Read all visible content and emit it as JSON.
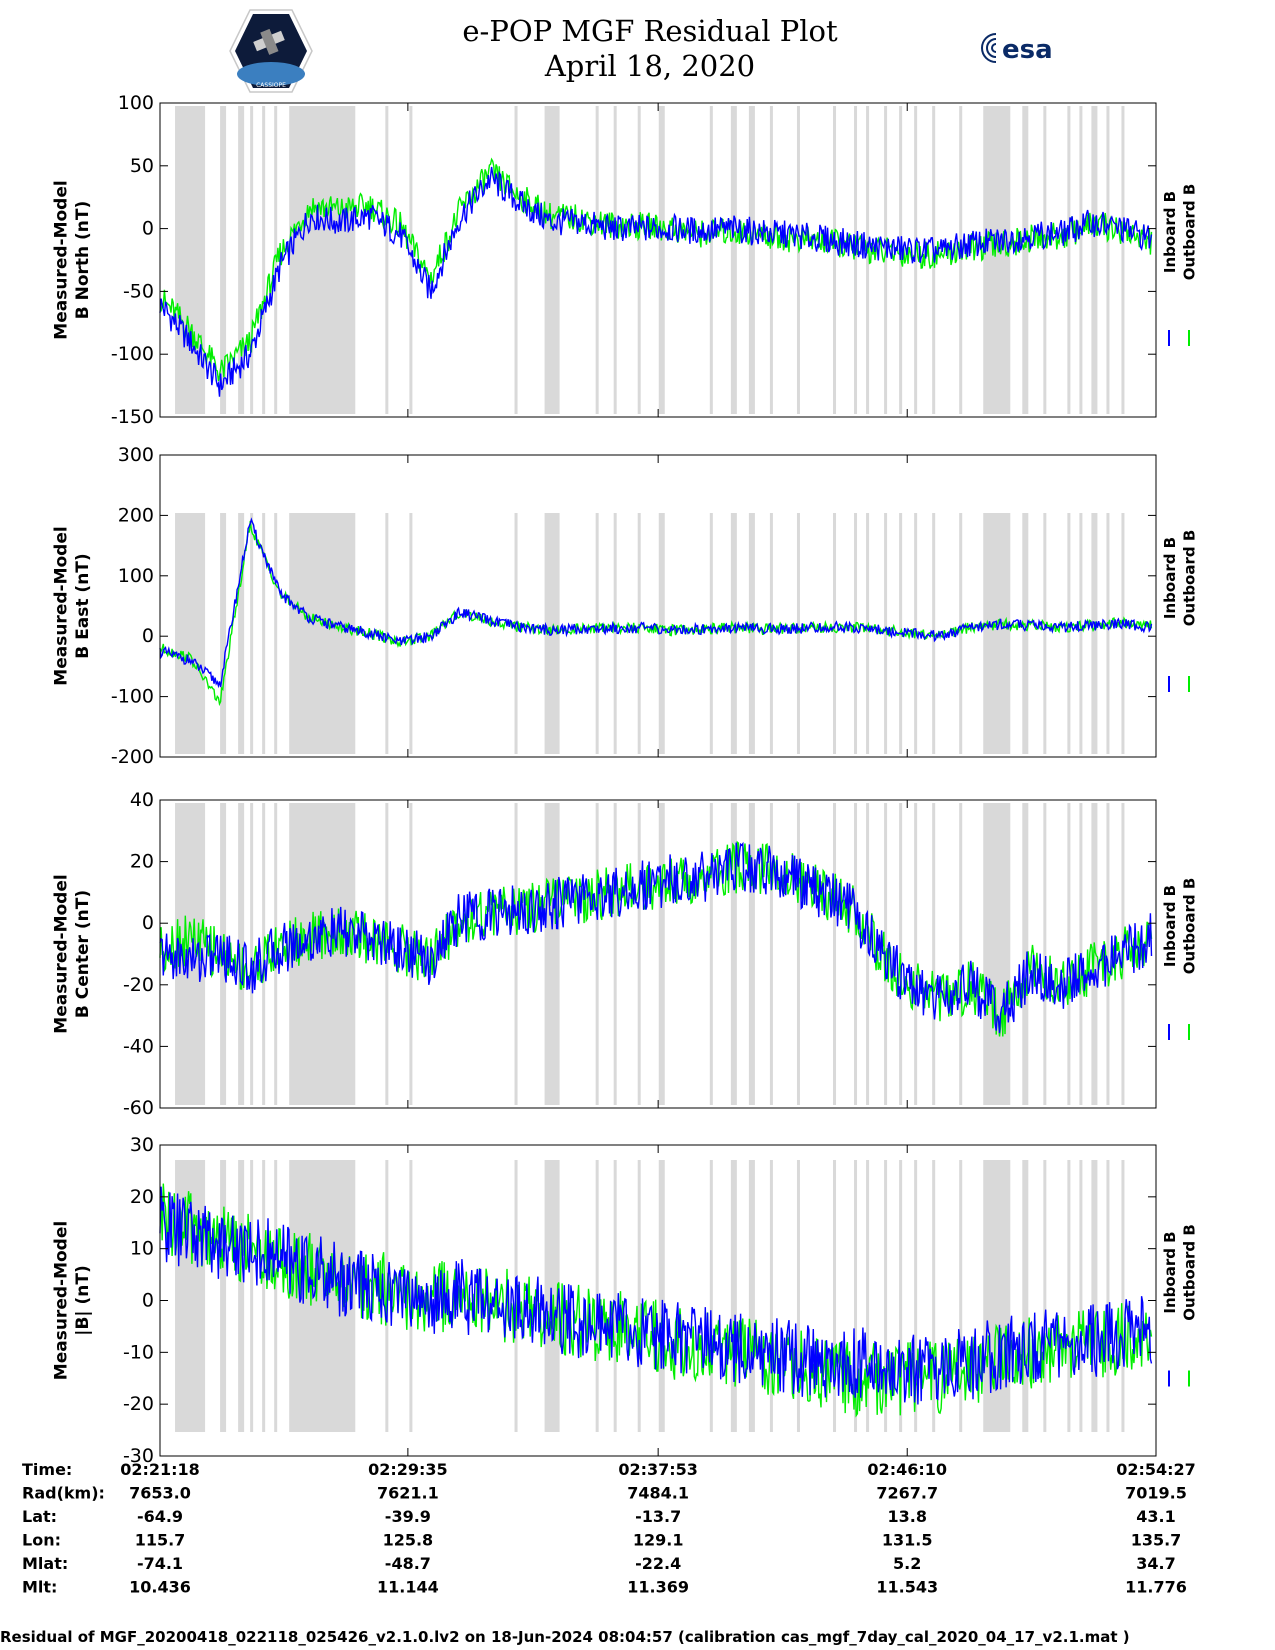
{
  "header": {
    "title_line1": "e-POP MGF Residual Plot",
    "title_line2": "April 18, 2020",
    "logo_left_text": "CASSIOPE",
    "logo_right_text": "esa"
  },
  "colors": {
    "inboard": "#0000ff",
    "outboard": "#00ee00",
    "shading": "#d9d9d9"
  },
  "chart_data": [
    {
      "type": "line",
      "ylabel": [
        "Measured-Model",
        "B North (nT)"
      ],
      "ylim": [
        -150,
        100
      ],
      "yticks": [
        100,
        50,
        0,
        -50,
        -100,
        -150
      ],
      "x": [
        0,
        1,
        2,
        3,
        4,
        5,
        6,
        7,
        8,
        9,
        10,
        11,
        12,
        13,
        14,
        15,
        16,
        17,
        18,
        19,
        20,
        21,
        22,
        23,
        24,
        25,
        26,
        27,
        28,
        29,
        30,
        31,
        32,
        33
      ],
      "series": [
        {
          "name": "Inboard B",
          "color": "#0000ff",
          "values": [
            -60,
            -90,
            -125,
            -100,
            -30,
            10,
            5,
            10,
            -5,
            -50,
            10,
            40,
            20,
            5,
            5,
            0,
            0,
            0,
            -2,
            0,
            -3,
            -5,
            -8,
            -12,
            -15,
            -17,
            -18,
            -12,
            -10,
            -5,
            -4,
            5,
            0,
            -8
          ]
        },
        {
          "name": "Outboard B",
          "color": "#00ee00",
          "values": [
            -55,
            -80,
            -115,
            -90,
            -20,
            18,
            15,
            18,
            2,
            -40,
            15,
            45,
            25,
            10,
            8,
            3,
            2,
            0,
            -4,
            -2,
            -5,
            -8,
            -10,
            -14,
            -18,
            -20,
            -21,
            -15,
            -13,
            -8,
            -6,
            3,
            -1,
            -10
          ]
        }
      ],
      "legend": "right"
    },
    {
      "type": "line",
      "ylabel": [
        "Measured-Model",
        "B East (nT)"
      ],
      "ylim": [
        -200,
        300
      ],
      "yticks": [
        300,
        200,
        100,
        0,
        -100,
        -200
      ],
      "x": [
        0,
        1,
        2,
        3,
        4,
        5,
        6,
        7,
        8,
        9,
        10,
        11,
        12,
        13,
        14,
        15,
        16,
        17,
        18,
        19,
        20,
        21,
        22,
        23,
        24,
        25,
        26,
        27,
        28,
        29,
        30,
        31,
        32,
        33
      ],
      "series": [
        {
          "name": "Inboard B",
          "color": "#0000ff",
          "values": [
            -25,
            -40,
            -80,
            190,
            70,
            30,
            15,
            5,
            -10,
            0,
            40,
            25,
            15,
            10,
            12,
            13,
            14,
            10,
            12,
            15,
            12,
            13,
            14,
            15,
            10,
            5,
            0,
            15,
            20,
            18,
            15,
            18,
            20,
            15
          ]
        },
        {
          "name": "Outboard B",
          "color": "#00ee00",
          "values": [
            -20,
            -35,
            -110,
            185,
            70,
            30,
            15,
            5,
            -10,
            0,
            40,
            25,
            15,
            10,
            12,
            13,
            14,
            10,
            12,
            15,
            12,
            13,
            14,
            15,
            10,
            5,
            0,
            15,
            20,
            18,
            15,
            18,
            22,
            18
          ]
        }
      ],
      "legend": "right"
    },
    {
      "type": "line",
      "ylabel": [
        "Measured-Model",
        "B Center (nT)"
      ],
      "ylim": [
        -60,
        40
      ],
      "yticks": [
        40,
        20,
        0,
        -20,
        -40,
        -60
      ],
      "x": [
        0,
        1,
        2,
        3,
        4,
        5,
        6,
        7,
        8,
        9,
        10,
        11,
        12,
        13,
        14,
        15,
        16,
        17,
        18,
        19,
        20,
        21,
        22,
        23,
        24,
        25,
        26,
        27,
        28,
        29,
        30,
        31,
        32,
        33
      ],
      "series": [
        {
          "name": "Inboard B",
          "color": "#0000ff",
          "values": [
            -10,
            -12,
            -10,
            -15,
            -8,
            -5,
            -3,
            -5,
            -8,
            -12,
            2,
            3,
            4,
            6,
            8,
            10,
            12,
            14,
            15,
            18,
            18,
            15,
            10,
            5,
            -10,
            -20,
            -25,
            -20,
            -30,
            -15,
            -20,
            -15,
            -10,
            -5
          ]
        },
        {
          "name": "Outboard B",
          "color": "#00ee00",
          "values": [
            -8,
            -5,
            -10,
            -15,
            -8,
            -5,
            -3,
            -5,
            -8,
            -12,
            2,
            3,
            4,
            6,
            8,
            10,
            12,
            14,
            15,
            18,
            18,
            15,
            10,
            5,
            -10,
            -20,
            -25,
            -20,
            -30,
            -15,
            -20,
            -15,
            -10,
            -5
          ]
        }
      ],
      "legend": "right"
    },
    {
      "type": "line",
      "ylabel": [
        "Measured-Model",
        "|B| (nT)"
      ],
      "ylim": [
        -30,
        30
      ],
      "yticks": [
        30,
        20,
        10,
        0,
        -10,
        -20,
        -30
      ],
      "x": [
        0,
        1,
        2,
        3,
        4,
        5,
        6,
        7,
        8,
        9,
        10,
        11,
        12,
        13,
        14,
        15,
        16,
        17,
        18,
        19,
        20,
        21,
        22,
        23,
        24,
        25,
        26,
        27,
        28,
        29,
        30,
        31,
        32,
        33
      ],
      "series": [
        {
          "name": "Inboard B",
          "color": "#0000ff",
          "values": [
            15,
            13,
            11,
            10,
            8,
            6,
            4,
            3,
            1,
            0,
            1,
            -1,
            -2,
            -3,
            -4,
            -5,
            -6,
            -7,
            -8,
            -9,
            -10,
            -11,
            -12,
            -12,
            -13,
            -13,
            -13,
            -12,
            -10,
            -9,
            -8,
            -8,
            -6,
            -5
          ]
        },
        {
          "name": "Outboard B",
          "color": "#00ee00",
          "values": [
            16,
            14,
            12,
            10,
            8,
            6,
            4,
            3,
            1,
            0,
            2,
            0,
            -2,
            -3,
            -4,
            -5,
            -6,
            -8,
            -9,
            -10,
            -11,
            -12,
            -14,
            -15,
            -15,
            -15,
            -15,
            -13,
            -11,
            -10,
            -9,
            -9,
            -7,
            -6
          ]
        }
      ],
      "legend": "right"
    }
  ],
  "gray_bands": [
    [
      0.5,
      1.5
    ],
    [
      2.0,
      2.2
    ],
    [
      2.6,
      2.8
    ],
    [
      3.0,
      3.1
    ],
    [
      3.4,
      3.5
    ],
    [
      3.8,
      3.9
    ],
    [
      4.3,
      6.5
    ],
    [
      7.5,
      7.6
    ],
    [
      8.3,
      8.4
    ],
    [
      11.8,
      11.9
    ],
    [
      12.8,
      13.3
    ],
    [
      14.5,
      14.6
    ],
    [
      15.1,
      15.2
    ],
    [
      15.9,
      16.0
    ],
    [
      16.6,
      16.8
    ],
    [
      18.3,
      18.4
    ],
    [
      19.0,
      19.2
    ],
    [
      19.6,
      19.8
    ],
    [
      20.3,
      20.4
    ],
    [
      21.2,
      21.3
    ],
    [
      22.4,
      22.5
    ],
    [
      23.1,
      23.2
    ],
    [
      23.5,
      23.6
    ],
    [
      24.1,
      24.2
    ],
    [
      24.6,
      24.7
    ],
    [
      25.1,
      25.2
    ],
    [
      25.7,
      25.8
    ],
    [
      26.6,
      26.7
    ],
    [
      27.4,
      28.3
    ],
    [
      28.7,
      28.9
    ],
    [
      29.4,
      29.5
    ],
    [
      30.2,
      30.3
    ],
    [
      30.6,
      30.7
    ],
    [
      31.0,
      31.2
    ],
    [
      31.5,
      31.6
    ],
    [
      32.0,
      32.1
    ]
  ],
  "x_ticks": [
    0,
    8.25,
    16.58,
    24.87,
    33.15
  ],
  "table": {
    "row_labels": [
      "Time:",
      "Rad(km):",
      "Lat:",
      "Lon:",
      "Mlat:",
      "Mlt:"
    ],
    "columns": [
      [
        "02:21:18",
        "7653.0",
        "-64.9",
        "115.7",
        "-74.1",
        "10.436"
      ],
      [
        "02:29:35",
        "7621.1",
        "-39.9",
        "125.8",
        "-48.7",
        "11.144"
      ],
      [
        "02:37:53",
        "7484.1",
        "-13.7",
        "129.1",
        "-22.4",
        "11.369"
      ],
      [
        "02:46:10",
        "7267.7",
        "13.8",
        "131.5",
        "5.2",
        "11.543"
      ],
      [
        "02:54:27",
        "7019.5",
        "43.1",
        "135.7",
        "34.7",
        "11.776"
      ]
    ]
  },
  "footer": "Residual of MGF_20200418_022118_025426_v2.1.0.lv2 on 18-Jun-2024 08:04:57 (calibration cas_mgf_7day_cal_2020_04_17_v2.1.mat )"
}
